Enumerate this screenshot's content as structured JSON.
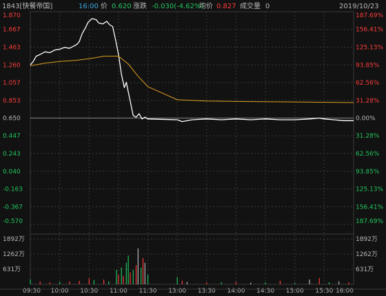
{
  "header": {
    "stock_title": "1843[快餐帝国]",
    "time": "16:00",
    "price_label": "价",
    "price": "0.620",
    "change_label": "涨跌",
    "change": "-0.030(-4.62%)",
    "avg_label": "均价",
    "avg": "0.827",
    "volume_label": "成交量",
    "volume": "0",
    "date": "2019/10/23"
  },
  "colors": {
    "background": "#121212",
    "grid": "#3a3a3a",
    "price_line": "#ffffff",
    "avg_line": "#e0a020",
    "up": "#ff3c3c",
    "down": "#22c55e",
    "neutral": "#b9b9b9",
    "time_highlight": "#3aa8e0"
  },
  "chart_data": {
    "type": "line",
    "title": "",
    "xlabel": "",
    "ylabel": "",
    "prev_close": 0.65,
    "price_axis": {
      "ticks": [
        "1.870",
        "1.667",
        "1.463",
        "1.260",
        "1.057",
        "0.853",
        "0.650",
        "0.447",
        "0.243",
        "0.040",
        "-0.163",
        "-0.367",
        "-0.570"
      ],
      "tick_values": [
        1.87,
        1.667,
        1.463,
        1.26,
        1.057,
        0.853,
        0.65,
        0.447,
        0.243,
        0.04,
        -0.163,
        -0.367,
        -0.57
      ],
      "ylim": [
        -0.57,
        1.87
      ]
    },
    "percent_axis": {
      "ticks": [
        "187.69%",
        "156.41%",
        "125.13%",
        "93.85%",
        "62.56%",
        "31.28%",
        "0.00%",
        "31.28%",
        "62.56%",
        "93.85%",
        "125.13%",
        "156.41%",
        "187.69%"
      ]
    },
    "time_axis": {
      "ticks": [
        "09:30",
        "10:00",
        "10:30",
        "11:00",
        "11:30",
        "13:00",
        "13:30",
        "14:00",
        "14:30",
        "15:00",
        "15:30",
        "16:00"
      ],
      "xlim": [
        "09:30",
        "16:00"
      ]
    },
    "volume_axis": {
      "ticks": [
        "1892万",
        "1262万",
        "631万"
      ],
      "tick_values": [
        1892,
        1262,
        631
      ],
      "unit": "万",
      "ylim": [
        0,
        2100
      ]
    },
    "series": [
      {
        "name": "价",
        "x": [
          "09:30",
          "09:33",
          "09:36",
          "09:40",
          "09:45",
          "09:50",
          "09:55",
          "10:00",
          "10:05",
          "10:10",
          "10:15",
          "10:18",
          "10:20",
          "10:23",
          "10:26",
          "10:29",
          "10:33",
          "10:37",
          "10:40",
          "10:44",
          "10:48",
          "10:51",
          "10:54",
          "10:57",
          "11:00",
          "11:03",
          "11:06",
          "11:08",
          "11:10",
          "11:12",
          "11:15",
          "11:18",
          "11:21",
          "11:24",
          "11:27",
          "11:30",
          "13:00",
          "13:05",
          "13:15",
          "13:30",
          "13:45",
          "14:00",
          "14:15",
          "14:30",
          "14:45",
          "15:00",
          "15:15",
          "15:25",
          "15:30",
          "15:40",
          "15:50",
          "16:00"
        ],
        "values": [
          1.26,
          1.3,
          1.36,
          1.38,
          1.41,
          1.4,
          1.43,
          1.44,
          1.46,
          1.45,
          1.48,
          1.5,
          1.53,
          1.62,
          1.68,
          1.75,
          1.79,
          1.78,
          1.74,
          1.73,
          1.76,
          1.72,
          1.7,
          1.55,
          1.38,
          1.15,
          1.0,
          1.06,
          0.95,
          0.84,
          0.68,
          0.66,
          0.7,
          0.64,
          0.66,
          0.64,
          0.63,
          0.61,
          0.63,
          0.64,
          0.63,
          0.64,
          0.63,
          0.64,
          0.63,
          0.63,
          0.64,
          0.65,
          0.64,
          0.63,
          0.62,
          0.62
        ]
      },
      {
        "name": "均价",
        "x": [
          "09:30",
          "09:45",
          "10:00",
          "10:15",
          "10:30",
          "10:45",
          "11:00",
          "11:10",
          "11:20",
          "11:30",
          "13:00",
          "13:30",
          "14:00",
          "15:00",
          "16:00"
        ],
        "values": [
          1.25,
          1.28,
          1.3,
          1.31,
          1.33,
          1.36,
          1.36,
          1.27,
          1.13,
          1.01,
          0.86,
          0.845,
          0.84,
          0.835,
          0.827
        ]
      }
    ],
    "volume": {
      "times": [
        "09:30",
        "09:40",
        "09:50",
        "10:00",
        "10:10",
        "10:20",
        "10:30",
        "10:35",
        "10:45",
        "10:50",
        "10:58",
        "11:00",
        "11:03",
        "11:05",
        "11:08",
        "11:10",
        "11:12",
        "11:15",
        "11:18",
        "11:20",
        "11:23",
        "11:25",
        "11:27",
        "11:30",
        "13:00",
        "13:05",
        "13:10",
        "13:30",
        "13:45",
        "14:00",
        "14:15",
        "14:30",
        "14:45",
        "15:00",
        "15:15",
        "15:25",
        "15:35",
        "15:45",
        "15:55"
      ],
      "values": [
        200,
        120,
        80,
        100,
        120,
        150,
        250,
        180,
        200,
        120,
        600,
        400,
        700,
        350,
        900,
        1200,
        500,
        600,
        800,
        1500,
        700,
        1100,
        900,
        400,
        300,
        150,
        100,
        80,
        90,
        100,
        70,
        80,
        150,
        60,
        200,
        260,
        90,
        120,
        80
      ],
      "directions": [
        "down",
        "up",
        "up",
        "down",
        "up",
        "up",
        "up",
        "down",
        "up",
        "down",
        "down",
        "up",
        "down",
        "up",
        "down",
        "down",
        "up",
        "down",
        "up",
        "neutral",
        "down",
        "up",
        "neutral",
        "down",
        "down",
        "up",
        "neutral",
        "up",
        "down",
        "up",
        "neutral",
        "down",
        "up",
        "down",
        "neutral",
        "up",
        "down",
        "neutral",
        "up"
      ]
    }
  }
}
